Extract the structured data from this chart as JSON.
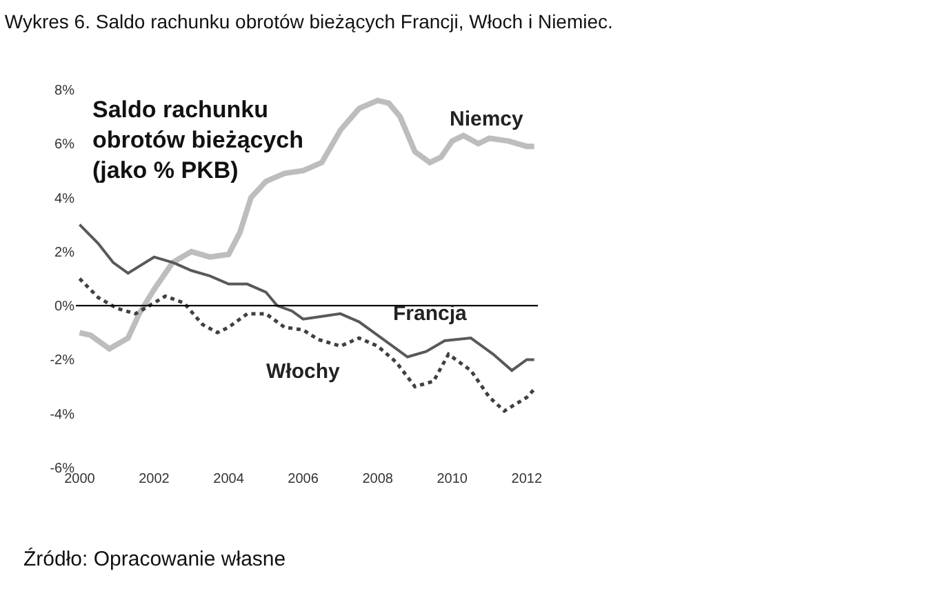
{
  "chart_data": {
    "type": "line",
    "title": "Wykres 6. Saldo rachunku obrotów bieżących Francji, Włoch i Niemiec.",
    "annotations": [
      "Saldo rachunku\nobrotów bieżących\n(jako % PKB)",
      "Źródło: Opracowanie własne"
    ],
    "series": [
      {
        "name": "Niemcy",
        "color": "#bdbdbd",
        "line_style": "solid",
        "x": [
          2000,
          2000.3,
          2000.8,
          2001.3,
          2001.6,
          2002,
          2002.5,
          2003,
          2003.5,
          2004,
          2004.3,
          2004.6,
          2005,
          2005.5,
          2006,
          2006.5,
          2007,
          2007.5,
          2008,
          2008.3,
          2008.6,
          2009,
          2009.4,
          2009.7,
          2010,
          2010.3,
          2010.7,
          2011,
          2011.5,
          2012,
          2012.2
        ],
        "values": [
          -1.0,
          -1.1,
          -1.6,
          -1.2,
          -0.3,
          0.6,
          1.6,
          2.0,
          1.8,
          1.9,
          2.7,
          4.0,
          4.6,
          4.9,
          5.0,
          5.3,
          6.5,
          7.3,
          7.6,
          7.5,
          7.0,
          5.7,
          5.3,
          5.5,
          6.1,
          6.3,
          6.0,
          6.2,
          6.1,
          5.9,
          5.9
        ]
      },
      {
        "name": "Francja",
        "color": "#595959",
        "line_style": "solid",
        "x": [
          2000,
          2000.5,
          2000.9,
          2001.3,
          2002,
          2002.5,
          2003,
          2003.5,
          2004,
          2004.5,
          2005,
          2005.3,
          2005.7,
          2006,
          2006.5,
          2007,
          2007.5,
          2008,
          2008.8,
          2009.3,
          2009.8,
          2010.5,
          2011.1,
          2011.6,
          2012,
          2012.2
        ],
        "values": [
          3.0,
          2.3,
          1.6,
          1.2,
          1.8,
          1.6,
          1.3,
          1.1,
          0.8,
          0.8,
          0.5,
          0.0,
          -0.2,
          -0.5,
          -0.4,
          -0.3,
          -0.6,
          -1.1,
          -1.9,
          -1.7,
          -1.3,
          -1.2,
          -1.8,
          -2.4,
          -2.0,
          -2.0
        ]
      },
      {
        "name": "Włochy",
        "color": "#404040",
        "line_style": "dotted",
        "x": [
          2000,
          2000.5,
          2001,
          2001.5,
          2002,
          2002.3,
          2002.8,
          2003.3,
          2003.7,
          2004,
          2004.5,
          2005,
          2005.5,
          2006,
          2006.4,
          2007,
          2007.5,
          2008,
          2008.5,
          2009,
          2009.5,
          2009.9,
          2010.5,
          2011,
          2011.4,
          2012,
          2012.2
        ],
        "values": [
          1.0,
          0.3,
          -0.1,
          -0.3,
          0.1,
          0.35,
          0.1,
          -0.7,
          -1.0,
          -0.8,
          -0.3,
          -0.3,
          -0.8,
          -0.9,
          -1.25,
          -1.5,
          -1.2,
          -1.5,
          -2.1,
          -3.0,
          -2.8,
          -1.8,
          -2.4,
          -3.4,
          -3.9,
          -3.4,
          -3.1
        ]
      }
    ],
    "xlim": [
      1999.9,
      2012.3
    ],
    "xticks": [
      2000,
      2002,
      2004,
      2006,
      2008,
      2010,
      2012
    ],
    "ylim": [
      -6,
      8
    ],
    "yticks": [
      {
        "value": -6,
        "label": "-6%"
      },
      {
        "value": -4,
        "label": "-4%"
      },
      {
        "value": -2,
        "label": "-2%"
      },
      {
        "value": 0,
        "label": "0%"
      },
      {
        "value": 2,
        "label": "2%"
      },
      {
        "value": 4,
        "label": "4%"
      },
      {
        "value": 6,
        "label": "6%"
      },
      {
        "value": 8,
        "label": "8%"
      }
    ],
    "ref_lines": [
      {
        "axis": "y",
        "value": 0,
        "color": "#000000"
      }
    ],
    "legend": false,
    "marker": "none"
  }
}
